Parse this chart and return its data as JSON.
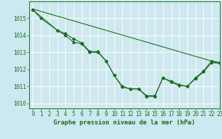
{
  "title": "Graphe pression niveau de la mer (hPa)",
  "background_color": "#cce8f0",
  "grid_color": "#ffffff",
  "line_color": "#1a6b1a",
  "xlim": [
    -0.5,
    23
  ],
  "ylim": [
    1009.7,
    1016.0
  ],
  "yticks": [
    1010,
    1011,
    1012,
    1013,
    1014,
    1015
  ],
  "xticks": [
    0,
    1,
    2,
    3,
    4,
    5,
    6,
    7,
    8,
    9,
    10,
    11,
    12,
    13,
    14,
    15,
    16,
    17,
    18,
    19,
    20,
    21,
    22,
    23
  ],
  "series1_x": [
    0,
    1,
    3,
    4,
    5,
    6,
    7,
    8,
    9,
    10,
    11,
    12,
    13,
    14,
    15,
    16,
    17,
    18,
    19,
    20,
    21,
    22,
    23
  ],
  "series1_y": [
    1015.5,
    1015.0,
    1014.3,
    1014.0,
    1013.6,
    1013.5,
    1013.0,
    1013.0,
    1012.5,
    1011.65,
    1011.0,
    1010.85,
    1010.85,
    1010.4,
    1010.4,
    1011.5,
    1011.3,
    1011.1,
    1011.0,
    1011.5,
    1011.9,
    1012.5,
    1012.4
  ],
  "series2_x": [
    0,
    3,
    4,
    5,
    6,
    7,
    8,
    9,
    10,
    11,
    12,
    13,
    14,
    15,
    16,
    17,
    18,
    19,
    20,
    21,
    22,
    23
  ],
  "series2_y": [
    1015.5,
    1014.3,
    1014.1,
    1013.8,
    1013.55,
    1013.05,
    1013.05,
    1012.5,
    1011.65,
    1010.95,
    1010.85,
    1010.85,
    1010.45,
    1010.45,
    1011.5,
    1011.25,
    1011.05,
    1011.0,
    1011.45,
    1011.85,
    1012.4,
    1012.35
  ],
  "series3_x": [
    0,
    23
  ],
  "series3_y": [
    1015.55,
    1012.35
  ],
  "title_fontsize": 6.5,
  "tick_fontsize": 5.5,
  "ylabel_fontsize": 6
}
